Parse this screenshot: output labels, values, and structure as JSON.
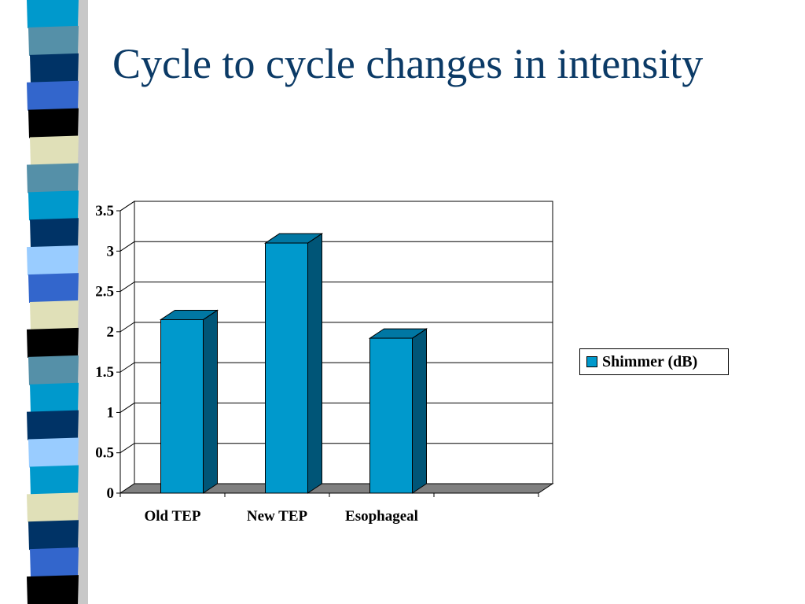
{
  "slide": {
    "title": "Cycle to cycle changes in intensity"
  },
  "colors": {
    "title": "#0b3a66",
    "bar_front": "#0099cc",
    "bar_side": "#005577",
    "bar_top": "#0077a3",
    "floor": "#808080",
    "band": [
      "#0099cc",
      "#5590a8",
      "#003366",
      "#3366cc",
      "#000000",
      "#e0e0b8",
      "#5590a8",
      "#0099cc",
      "#003366",
      "#99ccff",
      "#3366cc",
      "#e0e0b8",
      "#000000",
      "#5590a8",
      "#0099cc",
      "#003366",
      "#99ccff",
      "#0099cc",
      "#e0e0b8",
      "#003366",
      "#3366cc",
      "#000000"
    ]
  },
  "chart_data": {
    "type": "bar",
    "categories": [
      "Old TEP",
      "New TEP",
      "Esophageal"
    ],
    "series": [
      {
        "name": "Shimmer (dB)",
        "values": [
          2.15,
          3.1,
          1.92
        ]
      }
    ],
    "ylim": [
      0,
      3.5
    ],
    "yticks": [
      "0",
      "0.5",
      "1",
      "1.5",
      "2",
      "2.5",
      "3",
      "3.5"
    ],
    "grid": true,
    "legend": "right"
  }
}
